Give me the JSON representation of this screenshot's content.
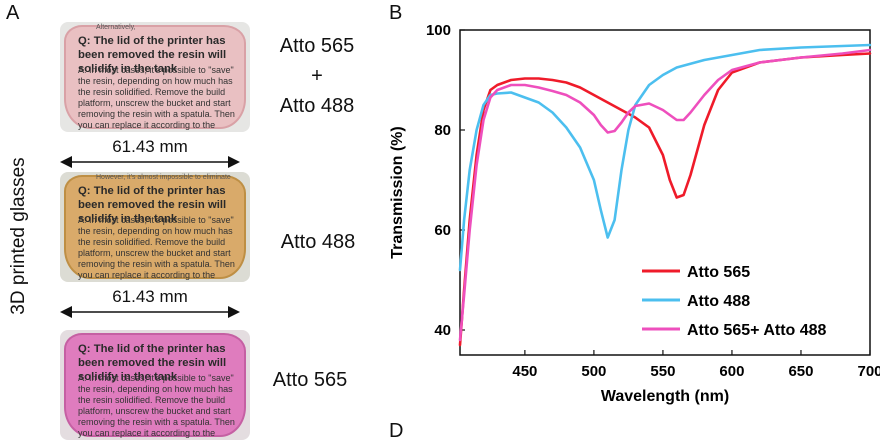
{
  "panels": {
    "a": "A",
    "b": "B",
    "d": "D"
  },
  "side_label": "3D printed glasses",
  "photos": [
    {
      "tint": "#e9b9bd",
      "edge": "#d6959c",
      "scribble": "Alternatively,",
      "question": "Q: The lid of the printer has been removed the resin will solidify in the tank",
      "answer": "A: In most cases, it's possible to \"save\" the resin, depending on how much has the resin solidified. Remove the build platform, unscrew the bucket and start removing the resin with a spatula. Then you can replace it according to the instructions",
      "label_lines": [
        "Atto 565",
        "+",
        "Atto 488"
      ]
    },
    {
      "tint": "#d9a257",
      "edge": "#b9822c",
      "scribble": "However, it's almost impossible to eliminate",
      "question": "Q: The lid of the printer has been removed the resin will solidify in the tank",
      "answer": "A: In most cases, it's possible to \"save\" the resin, depending on how much has the resin solidified. Remove the build platform, unscrew the bucket and start removing the resin with a spatula. Then you can replace it according to the instructions",
      "label_lines": [
        "Atto 488"
      ]
    },
    {
      "tint": "#df6cb8",
      "edge": "#c04a98",
      "scribble": "",
      "question": "Q: The lid of the printer has been removed the resin will solidify in the tank",
      "answer": "A: In most cases, it's possible to \"save\" the resin, depending on how much has the resin solidified. Remove the build platform, unscrew the bucket and start removing the resin with a spatula. Then you can replace it according to the instructions",
      "label_lines": [
        "Atto 565"
      ]
    }
  ],
  "measurements": [
    "61.43 mm",
    "61.43 mm"
  ],
  "chart_data": {
    "type": "line",
    "xlabel": "Wavelength (nm)",
    "ylabel": "Transmission (%)",
    "xlim": [
      403,
      700
    ],
    "ylim": [
      35,
      100
    ],
    "xticks": [
      450,
      500,
      550,
      600,
      650,
      700
    ],
    "yticks": [
      40,
      60,
      80,
      100
    ],
    "grid": false,
    "legend_position": "bottom-right",
    "series": [
      {
        "name": "Atto 565",
        "color": "#ef1b2a",
        "x": [
          403,
          406,
          410,
          415,
          420,
          425,
          430,
          440,
          450,
          460,
          470,
          480,
          490,
          500,
          510,
          520,
          530,
          540,
          550,
          555,
          560,
          565,
          570,
          580,
          590,
          600,
          620,
          650,
          680,
          700
        ],
        "y": [
          37,
          48,
          62,
          75,
          84,
          88,
          89,
          90,
          90.3,
          90.3,
          90,
          89.5,
          88.5,
          87,
          85.5,
          84,
          82.5,
          80.5,
          75,
          70,
          66.5,
          67,
          71,
          81,
          88,
          91.5,
          93.5,
          94.5,
          95,
          95.3
        ]
      },
      {
        "name": "Atto 488",
        "color": "#4cbfef",
        "x": [
          403,
          406,
          410,
          415,
          420,
          425,
          430,
          440,
          450,
          460,
          470,
          480,
          490,
          500,
          505,
          510,
          515,
          520,
          525,
          530,
          540,
          550,
          560,
          580,
          600,
          620,
          650,
          680,
          700
        ],
        "y": [
          52,
          62,
          72,
          80,
          85,
          87,
          87.3,
          87.5,
          86.5,
          85.5,
          83.5,
          80.5,
          76.5,
          70,
          64,
          58.5,
          62,
          72,
          80,
          85,
          89,
          91,
          92.5,
          94,
          95,
          96,
          96.5,
          96.8,
          97
        ]
      },
      {
        "name": "Atto 565+ Atto 488",
        "color": "#ee4fbd",
        "x": [
          403,
          406,
          410,
          415,
          420,
          425,
          430,
          440,
          450,
          460,
          470,
          480,
          490,
          500,
          505,
          510,
          515,
          520,
          525,
          530,
          540,
          550,
          560,
          565,
          570,
          580,
          590,
          600,
          620,
          650,
          680,
          700
        ],
        "y": [
          38,
          47,
          60,
          73,
          82,
          86.5,
          88,
          89,
          89,
          88.5,
          87.8,
          87,
          85.5,
          83,
          81,
          79.5,
          79.8,
          81.5,
          83.5,
          84.8,
          85.3,
          84,
          82,
          82,
          83.5,
          87,
          90,
          92,
          93.5,
          94.5,
          95.3,
          96
        ]
      }
    ]
  }
}
